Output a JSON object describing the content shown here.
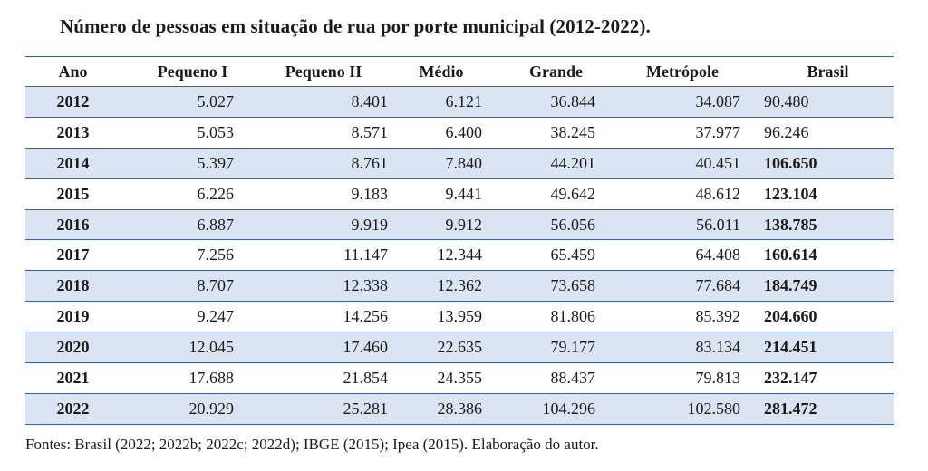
{
  "title": "Número de pessoas em situação de rua por porte municipal (2012-2022).",
  "table": {
    "headers": [
      "Ano",
      "Pequeno I",
      "Pequeno II",
      "Médio",
      "Grande",
      "Metrópole",
      "Brasil"
    ],
    "rows": [
      [
        "2012",
        "5.027",
        "8.401",
        "6.121",
        "36.844",
        "34.087",
        "90.480"
      ],
      [
        "2013",
        "5.053",
        "8.571",
        "6.400",
        "38.245",
        "37.977",
        "96.246"
      ],
      [
        "2014",
        "5.397",
        "8.761",
        "7.840",
        "44.201",
        "40.451",
        "106.650"
      ],
      [
        "2015",
        "6.226",
        "9.183",
        "9.441",
        "49.642",
        "48.612",
        "123.104"
      ],
      [
        "2016",
        "6.887",
        "9.919",
        "9.912",
        "56.056",
        "56.011",
        "138.785"
      ],
      [
        "2017",
        "7.256",
        "11.147",
        "12.344",
        "65.459",
        "64.408",
        "160.614"
      ],
      [
        "2018",
        "8.707",
        "12.338",
        "12.362",
        "73.658",
        "77.684",
        "184.749"
      ],
      [
        "2019",
        "9.247",
        "14.256",
        "13.959",
        "81.806",
        "85.392",
        "204.660"
      ],
      [
        "2020",
        "12.045",
        "17.460",
        "22.635",
        "79.177",
        "83.134",
        "214.451"
      ],
      [
        "2021",
        "17.688",
        "21.854",
        "24.355",
        "88.437",
        "79.813",
        "232.147"
      ],
      [
        "2022",
        "20.929",
        "25.281",
        "28.386",
        "104.296",
        "102.580",
        "281.472"
      ]
    ]
  },
  "source": "Fontes: Brasil (2022; 2022b; 2022c; 2022d); IBGE (2015); Ipea (2015). Elaboração do autor.",
  "colors": {
    "stripe": "#dbe4f3",
    "rule": "#3a5fa8"
  }
}
